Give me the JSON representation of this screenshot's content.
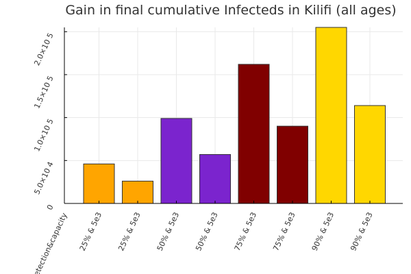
{
  "chart_data": {
    "type": "bar",
    "title": "Gain in final cumulative Infecteds in Kilifi (all ages)",
    "xlabel": "detection&capacity",
    "ylabel": "",
    "categories": [
      "25% & 5e3",
      "25% & 5e3",
      "50% & 5e3",
      "50% & 5e3",
      "75% & 5e3",
      "75% & 5e3",
      "90% & 5e3",
      "90% & 5e3"
    ],
    "values": [
      46000,
      26000,
      99000,
      57000,
      162000,
      90000,
      205000,
      114000
    ],
    "bar_colors": [
      "#FFA500",
      "#FFA500",
      "#7B24CE",
      "#7B24CE",
      "#800000",
      "#800000",
      "#FFD700",
      "#FFD700"
    ],
    "ylim": [
      0,
      205000
    ],
    "yticks": [
      {
        "value": 0,
        "label": "0"
      },
      {
        "value": 50000,
        "label": "5.0×10 4"
      },
      {
        "value": 100000,
        "label": "1.0×10 5"
      },
      {
        "value": 150000,
        "label": "1.5×10 5"
      },
      {
        "value": 200000,
        "label": "2.0×10 5"
      }
    ],
    "grid": true,
    "legend": "none"
  }
}
